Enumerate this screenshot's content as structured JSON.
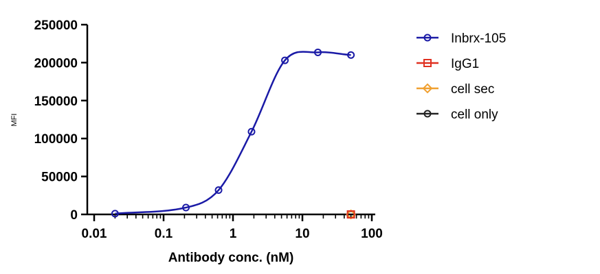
{
  "chart_data": {
    "type": "scatter",
    "xlabel": "Antibody conc. (nM)",
    "ylabel": "MFI",
    "x_scale": "log",
    "xlim": [
      0.01,
      100
    ],
    "ylim": [
      0,
      250000
    ],
    "x_tick_labels": [
      "0.01",
      "0.1",
      "1",
      "10",
      "100"
    ],
    "y_tick_labels": [
      "0",
      "50000",
      "100000",
      "150000",
      "200000",
      "250000"
    ],
    "y_ticks": [
      0,
      50000,
      100000,
      150000,
      200000,
      250000
    ],
    "legend_position": "right",
    "series": [
      {
        "name": "Inbrx-105",
        "color": "#1a1aa6",
        "marker": "circle",
        "fit_curve": true,
        "x": [
          0.02,
          0.21,
          0.62,
          1.85,
          5.6,
          16.7,
          50
        ],
        "y": [
          1000,
          9000,
          32000,
          109000,
          203000,
          213500,
          210000
        ]
      },
      {
        "name": "IgG1",
        "color": "#e03020",
        "marker": "square",
        "x": [
          50
        ],
        "y": [
          0
        ]
      },
      {
        "name": "cell sec",
        "color": "#f0a030",
        "marker": "diamond",
        "x": [
          50
        ],
        "y": [
          0
        ]
      },
      {
        "name": "cell only",
        "color": "#222222",
        "marker": "circle",
        "x": [
          50
        ],
        "y": [
          0
        ]
      }
    ]
  }
}
